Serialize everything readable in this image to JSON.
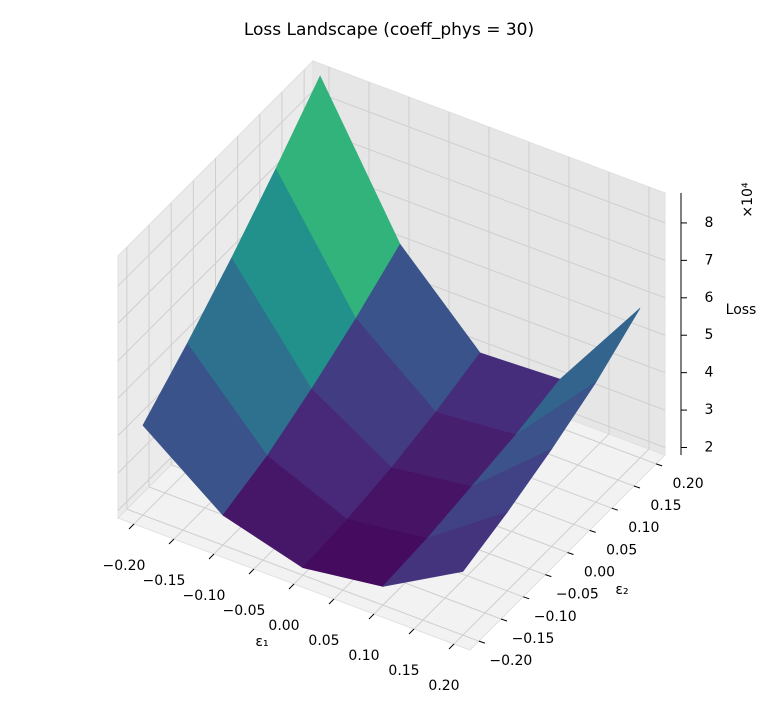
{
  "chart_data": {
    "type": "surface3d",
    "title": "Loss Landscape (coeff_phys = 30)",
    "xlabel": "ε₁",
    "ylabel": "ε₂",
    "zlabel": "Loss",
    "z_offset_label": "×10⁴",
    "x": [
      -0.2,
      -0.1,
      0,
      0.1,
      0.2
    ],
    "y": [
      -0.2,
      -0.1,
      0,
      0.1,
      0.2
    ],
    "z": [
      [
        4.2,
        5.2,
        6.3,
        7.5,
        8.8
      ],
      [
        2.6,
        3.0,
        3.6,
        4.3,
        5.1
      ],
      [
        2.0,
        2.1,
        2.3,
        2.6,
        3.0
      ],
      [
        2.3,
        2.4,
        2.6,
        2.8,
        3.1
      ],
      [
        3.5,
        3.9,
        4.4,
        5.0,
        5.8
      ]
    ],
    "colormap": "viridis",
    "xlim": [
      -0.22,
      0.22
    ],
    "ylim": [
      -0.22,
      0.22
    ],
    "zlim": [
      1.8,
      8.8
    ],
    "xticks": [
      {
        "value": -0.2,
        "label": "−0.20"
      },
      {
        "value": -0.15,
        "label": "−0.15"
      },
      {
        "value": -0.1,
        "label": "−0.10"
      },
      {
        "value": -0.05,
        "label": "−0.05"
      },
      {
        "value": 0,
        "label": "0.00"
      },
      {
        "value": 0.05,
        "label": "0.05"
      },
      {
        "value": 0.1,
        "label": "0.10"
      },
      {
        "value": 0.15,
        "label": "0.15"
      },
      {
        "value": 0.2,
        "label": "0.20"
      }
    ],
    "yticks": [
      {
        "value": -0.2,
        "label": "−0.20"
      },
      {
        "value": -0.15,
        "label": "−0.15"
      },
      {
        "value": -0.1,
        "label": "−0.10"
      },
      {
        "value": -0.05,
        "label": "−0.05"
      },
      {
        "value": 0,
        "label": "0.00"
      },
      {
        "value": 0.05,
        "label": "0.05"
      },
      {
        "value": 0.1,
        "label": "0.10"
      },
      {
        "value": 0.15,
        "label": "0.15"
      },
      {
        "value": 0.2,
        "label": "0.20"
      }
    ],
    "zticks": [
      2,
      3,
      4,
      5,
      6,
      7,
      8
    ],
    "grid": true
  }
}
